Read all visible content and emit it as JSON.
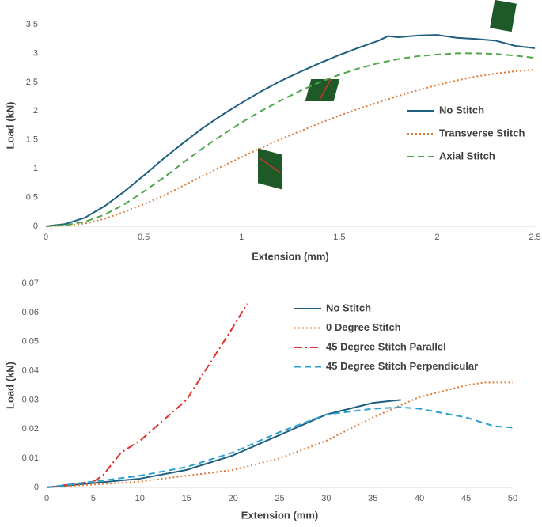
{
  "chart_data": [
    {
      "type": "line",
      "x_label": "Extension (mm)",
      "y_label": "Load (kN)",
      "xlim": [
        0,
        2.5
      ],
      "ylim": [
        0,
        3.5
      ],
      "xticks": [
        0,
        0.5,
        1,
        1.5,
        2,
        2.5
      ],
      "yticks": [
        0,
        0.5,
        1,
        1.5,
        2,
        2.5,
        3,
        3.5
      ],
      "legend": "right",
      "series": [
        {
          "name": "No Stitch",
          "color": "#1f5f80",
          "line_style": "solid",
          "x": [
            0,
            0.1,
            0.2,
            0.3,
            0.4,
            0.5,
            0.6,
            0.7,
            0.8,
            0.9,
            1.0,
            1.1,
            1.2,
            1.3,
            1.4,
            1.5,
            1.6,
            1.7,
            1.75,
            1.8,
            1.9,
            2.0,
            2.1,
            2.2,
            2.3,
            2.4,
            2.5
          ],
          "values": [
            0,
            0.04,
            0.15,
            0.35,
            0.6,
            0.88,
            1.17,
            1.44,
            1.7,
            1.93,
            2.14,
            2.34,
            2.52,
            2.68,
            2.83,
            2.97,
            3.1,
            3.22,
            3.3,
            3.28,
            3.31,
            3.32,
            3.27,
            3.25,
            3.22,
            3.13,
            3.09
          ]
        },
        {
          "name": "Transverse Stitch",
          "color": "#e07b39",
          "line_style": "dotted",
          "x": [
            0,
            0.1,
            0.2,
            0.3,
            0.4,
            0.5,
            0.6,
            0.7,
            0.8,
            0.9,
            1.0,
            1.1,
            1.2,
            1.3,
            1.4,
            1.5,
            1.6,
            1.7,
            1.8,
            1.9,
            2.0,
            2.1,
            2.2,
            2.3,
            2.4,
            2.5
          ],
          "values": [
            0,
            0.01,
            0.05,
            0.13,
            0.25,
            0.38,
            0.53,
            0.7,
            0.87,
            1.04,
            1.2,
            1.36,
            1.51,
            1.65,
            1.79,
            1.92,
            2.04,
            2.15,
            2.26,
            2.36,
            2.45,
            2.53,
            2.6,
            2.65,
            2.69,
            2.72
          ]
        },
        {
          "name": "Axial Stitch",
          "color": "#4ea64a",
          "line_style": "dashed",
          "x": [
            0,
            0.1,
            0.2,
            0.3,
            0.4,
            0.5,
            0.6,
            0.7,
            0.8,
            0.9,
            1.0,
            1.1,
            1.2,
            1.3,
            1.4,
            1.5,
            1.6,
            1.7,
            1.8,
            1.9,
            2.0,
            2.1,
            2.2,
            2.3,
            2.4,
            2.5
          ],
          "values": [
            0,
            0.02,
            0.08,
            0.2,
            0.38,
            0.6,
            0.84,
            1.1,
            1.35,
            1.58,
            1.8,
            2.0,
            2.18,
            2.35,
            2.5,
            2.63,
            2.74,
            2.83,
            2.9,
            2.95,
            2.98,
            3.0,
            3.0,
            2.99,
            2.96,
            2.92
          ]
        }
      ]
    },
    {
      "type": "line",
      "x_label": "Extension (mm)",
      "y_label": "Load (kN)",
      "xlim": [
        0,
        50
      ],
      "ylim": [
        0,
        0.07
      ],
      "xticks": [
        0,
        5,
        10,
        15,
        20,
        25,
        30,
        35,
        40,
        45,
        50
      ],
      "yticks": [
        0,
        0.01,
        0.02,
        0.03,
        0.04,
        0.05,
        0.06,
        0.07
      ],
      "legend": "top",
      "series": [
        {
          "name": "No Stitch",
          "color": "#1f5f80",
          "line_style": "solid",
          "x": [
            0,
            5,
            10,
            15,
            20,
            25,
            30,
            35,
            38
          ],
          "values": [
            0,
            0.0015,
            0.003,
            0.006,
            0.011,
            0.018,
            0.025,
            0.029,
            0.03
          ]
        },
        {
          "name": "0 Degree Stitch",
          "color": "#e07b39",
          "line_style": "dotted",
          "x": [
            0,
            5,
            10,
            15,
            20,
            25,
            30,
            35,
            40,
            45,
            47,
            50
          ],
          "values": [
            0,
            0.001,
            0.002,
            0.004,
            0.006,
            0.01,
            0.016,
            0.024,
            0.031,
            0.035,
            0.036,
            0.036
          ]
        },
        {
          "name": "45 Degree Stitch Parallel",
          "color": "#e0302a",
          "line_style": "dashdot",
          "x": [
            0,
            5,
            6,
            8,
            10,
            15,
            20,
            21.5
          ],
          "values": [
            0,
            0.002,
            0.004,
            0.012,
            0.016,
            0.03,
            0.055,
            0.063
          ]
        },
        {
          "name": "45 Degree Stitch Perpendicular",
          "color": "#2aa0d0",
          "line_style": "dashed",
          "x": [
            0,
            5,
            10,
            15,
            20,
            25,
            30,
            35,
            38,
            40,
            45,
            48,
            50
          ],
          "values": [
            0,
            0.002,
            0.004,
            0.007,
            0.012,
            0.019,
            0.025,
            0.027,
            0.0275,
            0.027,
            0.024,
            0.021,
            0.0205
          ]
        }
      ]
    }
  ]
}
